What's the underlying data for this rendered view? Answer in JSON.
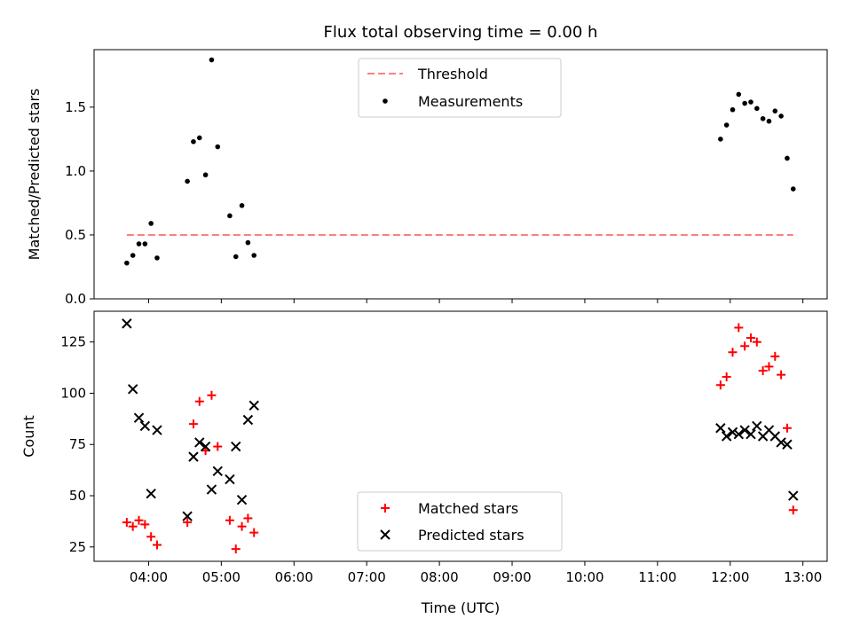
{
  "chart_data": [
    {
      "type": "scatter",
      "title": "Flux total observing time = 0.00 h",
      "xlabel": "",
      "ylabel": "Matched/Predicted stars",
      "xlim": [
        "03:15",
        "13:20"
      ],
      "ylim": [
        0,
        1.95
      ],
      "yticks": [
        0.0,
        0.5,
        1.0,
        1.5
      ],
      "ytick_labels": [
        "0.0",
        "0.5",
        "1.0",
        "1.5"
      ],
      "x_tick_labels_shown": false,
      "grid": false,
      "legend": {
        "placement": "top-center",
        "entries": [
          "Threshold",
          "Measurements"
        ]
      },
      "series": [
        {
          "name": "Threshold",
          "kind": "dashed-line",
          "color": "#ff7f7f",
          "x": [
            "03:42",
            "12:52"
          ],
          "y": [
            0.5,
            0.5
          ]
        },
        {
          "name": "Measurements",
          "kind": "dot",
          "color": "#000000",
          "x": [
            "03:42",
            "03:47",
            "03:52",
            "03:57",
            "04:02",
            "04:07",
            "04:32",
            "04:37",
            "04:42",
            "04:47",
            "04:52",
            "04:57",
            "05:07",
            "05:12",
            "05:17",
            "05:22",
            "05:27",
            "11:52",
            "11:57",
            "12:02",
            "12:07",
            "12:12",
            "12:17",
            "12:22",
            "12:27",
            "12:32",
            "12:37",
            "12:42",
            "12:47",
            "12:52"
          ],
          "y": [
            0.28,
            0.34,
            0.43,
            0.43,
            0.59,
            0.32,
            0.92,
            1.23,
            1.26,
            0.97,
            1.87,
            1.19,
            0.65,
            0.33,
            0.73,
            0.44,
            0.34,
            1.25,
            1.36,
            1.48,
            1.6,
            1.53,
            1.54,
            1.49,
            1.41,
            1.39,
            1.47,
            1.43,
            1.1,
            0.86
          ]
        }
      ]
    },
    {
      "type": "scatter",
      "title": "",
      "xlabel": "Time (UTC)",
      "ylabel": "Count",
      "xlim": [
        "03:15",
        "13:20"
      ],
      "ylim": [
        18,
        140
      ],
      "yticks": [
        25,
        50,
        75,
        100,
        125
      ],
      "xticks": [
        "04:00",
        "05:00",
        "06:00",
        "07:00",
        "08:00",
        "09:00",
        "10:00",
        "11:00",
        "12:00",
        "13:00"
      ],
      "grid": false,
      "legend": {
        "placement": "bottom-center",
        "entries": [
          "Matched stars",
          "Predicted stars"
        ]
      },
      "series": [
        {
          "name": "Matched stars",
          "marker": "+",
          "color": "#ff0000",
          "x": [
            "03:42",
            "03:47",
            "03:52",
            "03:57",
            "04:02",
            "04:07",
            "04:32",
            "04:37",
            "04:42",
            "04:47",
            "04:52",
            "04:57",
            "05:07",
            "05:12",
            "05:17",
            "05:22",
            "05:27",
            "11:52",
            "11:57",
            "12:02",
            "12:07",
            "12:12",
            "12:17",
            "12:22",
            "12:27",
            "12:32",
            "12:37",
            "12:42",
            "12:47",
            "12:52"
          ],
          "y": [
            37,
            35,
            38,
            36,
            30,
            26,
            37,
            85,
            96,
            72,
            99,
            74,
            38,
            24,
            35,
            39,
            32,
            104,
            108,
            120,
            132,
            123,
            127,
            125,
            111,
            113,
            118,
            109,
            83,
            43
          ]
        },
        {
          "name": "Predicted stars",
          "marker": "x",
          "color": "#000000",
          "x": [
            "03:42",
            "03:47",
            "03:52",
            "03:57",
            "04:02",
            "04:07",
            "04:32",
            "04:37",
            "04:42",
            "04:47",
            "04:52",
            "04:57",
            "05:07",
            "05:12",
            "05:17",
            "05:22",
            "05:27",
            "11:52",
            "11:57",
            "12:02",
            "12:07",
            "12:12",
            "12:17",
            "12:22",
            "12:27",
            "12:32",
            "12:37",
            "12:42",
            "12:47",
            "12:52"
          ],
          "y": [
            134,
            102,
            88,
            84,
            51,
            82,
            40,
            69,
            76,
            74,
            53,
            62,
            58,
            74,
            48,
            87,
            94,
            83,
            79,
            81,
            80,
            82,
            80,
            84,
            79,
            82,
            79,
            76,
            75,
            50
          ]
        }
      ]
    }
  ]
}
